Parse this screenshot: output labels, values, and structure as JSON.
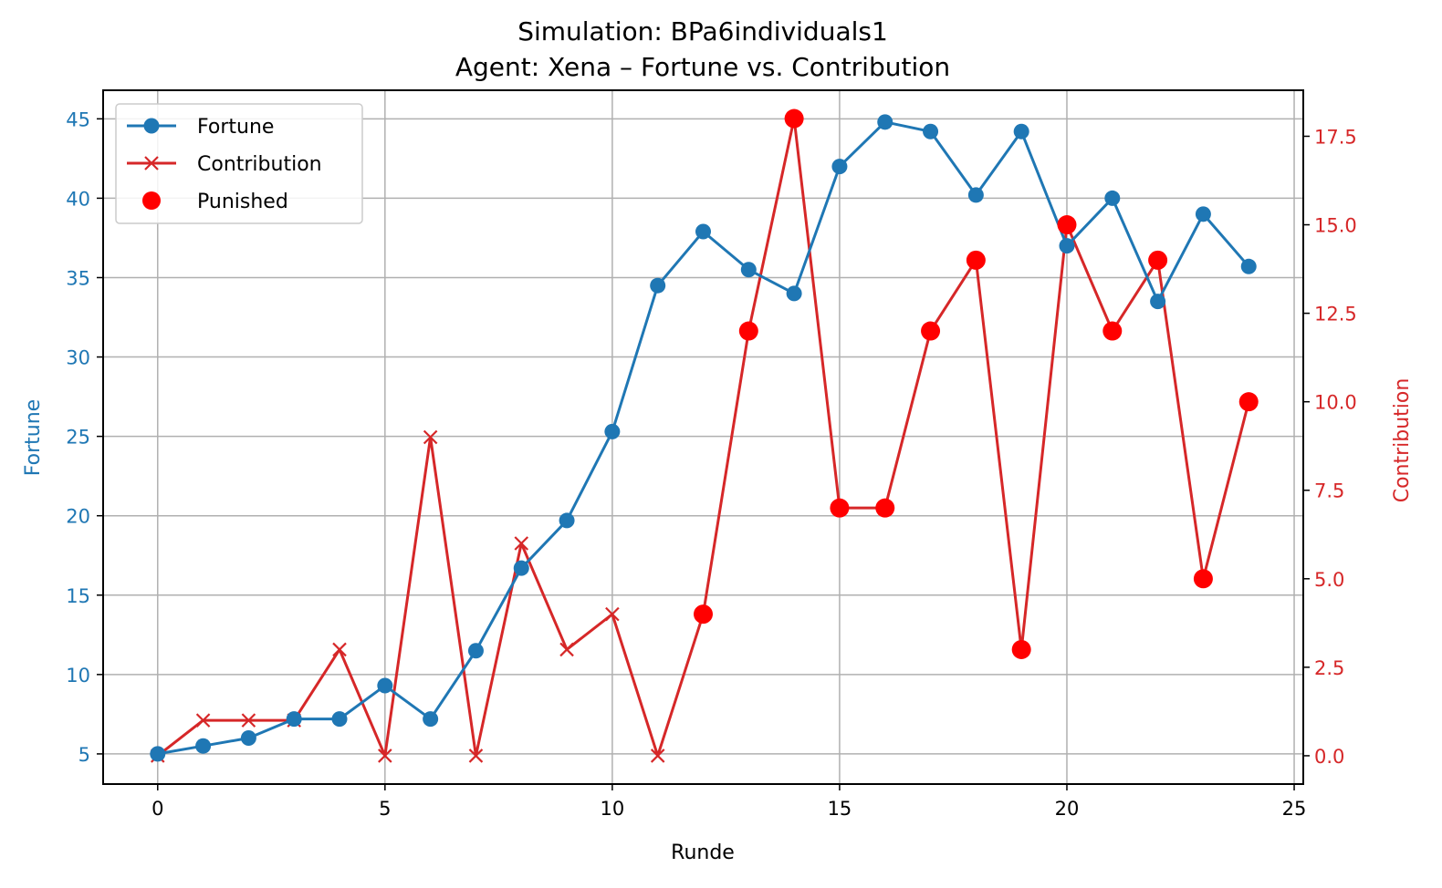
{
  "chart_data": {
    "type": "line",
    "title": "Simulation: BPa6individuals1",
    "subtitle": "Agent: Xena – Fortune vs. Contribution",
    "xlabel": "Runde",
    "ylabel_left": "Fortune",
    "ylabel_right": "Contribution",
    "xlim": [
      -1.2,
      25.2
    ],
    "ylim_left": [
      3.1,
      46.8
    ],
    "ylim_right": [
      -0.8,
      18.8
    ],
    "x_ticks": [
      0,
      5,
      10,
      15,
      20,
      25
    ],
    "y_ticks_left": [
      5,
      10,
      15,
      20,
      25,
      30,
      35,
      40,
      45
    ],
    "y_ticks_right": [
      "0.0",
      "2.5",
      "5.0",
      "7.5",
      "10.0",
      "12.5",
      "15.0",
      "17.5"
    ],
    "grid": true,
    "legend_placement": "top-left",
    "colors": {
      "fortune": "#1f77b4",
      "contribution": "#d62728",
      "punished": "#ff0000",
      "axis": "#000000",
      "grid": "#b0b0b0"
    },
    "x": [
      0,
      1,
      2,
      3,
      4,
      5,
      6,
      7,
      8,
      9,
      10,
      11,
      12,
      13,
      14,
      15,
      16,
      17,
      18,
      19,
      20,
      21,
      22,
      23,
      24
    ],
    "series": [
      {
        "name": "Fortune",
        "axis": "left",
        "marker": "circle",
        "values": [
          5.0,
          5.5,
          6.0,
          7.2,
          7.2,
          9.3,
          7.2,
          11.5,
          16.7,
          19.7,
          25.3,
          34.5,
          37.9,
          35.5,
          34.0,
          42.0,
          44.8,
          44.2,
          40.2,
          44.2,
          37.0,
          40.0,
          33.5,
          39.0,
          35.7
        ]
      },
      {
        "name": "Contribution",
        "axis": "right",
        "marker": "x",
        "values": [
          0,
          1,
          1,
          1,
          3,
          0,
          9,
          0,
          6,
          3,
          4,
          0,
          4,
          12,
          18,
          7,
          7,
          12,
          14,
          3,
          15,
          12,
          14,
          5,
          10
        ]
      },
      {
        "name": "Punished",
        "axis": "right",
        "type": "scatter",
        "x": [
          12,
          13,
          14,
          15,
          16,
          17,
          18,
          19,
          20,
          21,
          22,
          23,
          24
        ],
        "values": [
          4,
          12,
          18,
          7,
          7,
          12,
          14,
          3,
          15,
          12,
          14,
          5,
          10
        ]
      }
    ]
  }
}
